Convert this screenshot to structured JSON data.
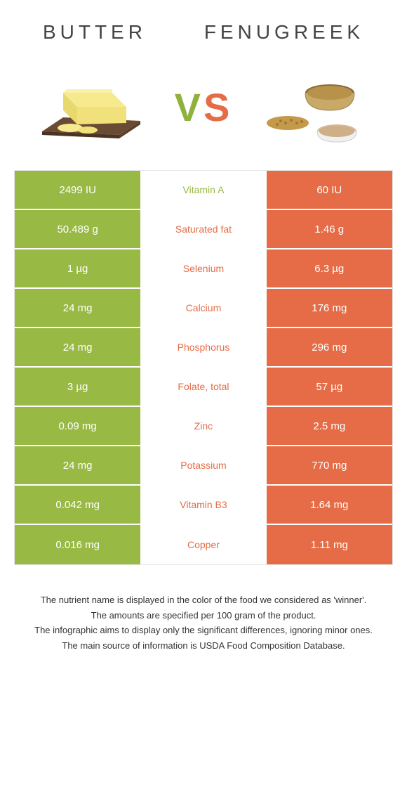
{
  "colors": {
    "left": "#98b944",
    "right": "#e56c46",
    "left_text": "#ffffff",
    "right_text": "#ffffff",
    "mid_bg": "#ffffff",
    "border": "#e5e5e5"
  },
  "header": {
    "left_title": "Butter",
    "right_title": "Fenugreek",
    "vs_v": "V",
    "vs_s": "S"
  },
  "rows": [
    {
      "left": "2499 IU",
      "mid": "Vitamin A",
      "right": "60 IU",
      "winner": "left"
    },
    {
      "left": "50.489 g",
      "mid": "Saturated fat",
      "right": "1.46 g",
      "winner": "right"
    },
    {
      "left": "1 µg",
      "mid": "Selenium",
      "right": "6.3 µg",
      "winner": "right"
    },
    {
      "left": "24 mg",
      "mid": "Calcium",
      "right": "176 mg",
      "winner": "right"
    },
    {
      "left": "24 mg",
      "mid": "Phosphorus",
      "right": "296 mg",
      "winner": "right"
    },
    {
      "left": "3 µg",
      "mid": "Folate, total",
      "right": "57 µg",
      "winner": "right"
    },
    {
      "left": "0.09 mg",
      "mid": "Zinc",
      "right": "2.5 mg",
      "winner": "right"
    },
    {
      "left": "24 mg",
      "mid": "Potassium",
      "right": "770 mg",
      "winner": "right"
    },
    {
      "left": "0.042 mg",
      "mid": "Vitamin B3",
      "right": "1.64 mg",
      "winner": "right"
    },
    {
      "left": "0.016 mg",
      "mid": "Copper",
      "right": "1.11 mg",
      "winner": "right"
    }
  ],
  "footnotes": [
    "The nutrient name is displayed in the color of the food we considered as 'winner'.",
    "The amounts are specified per 100 gram of the product.",
    "The infographic aims to display only the significant differences, ignoring minor ones.",
    "The main source of information is USDA Food Composition Database."
  ]
}
